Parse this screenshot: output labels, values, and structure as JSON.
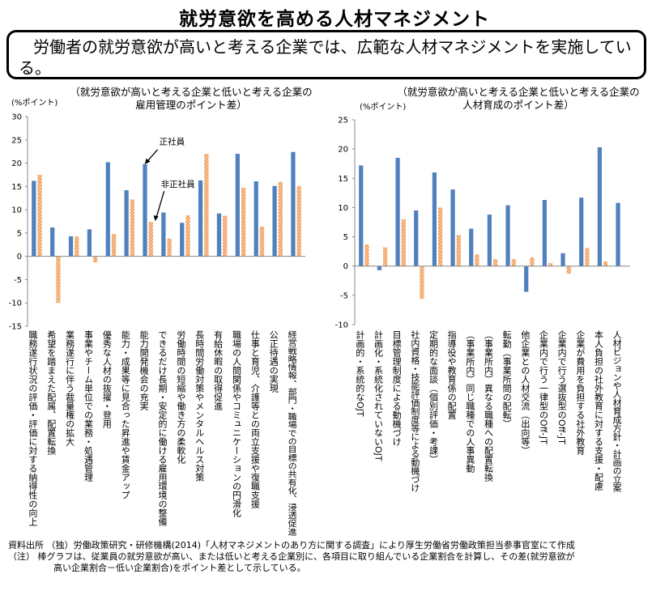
{
  "title": "就労意欲を高める人材マネジメント",
  "summary": "労働者の就労意欲が高いと考える企業では、広範な人材マネジメントを実施している。",
  "colors": {
    "regular": "#4f81bd",
    "nonregular": "#f79646"
  },
  "annotations": {
    "regular": "正社員",
    "nonregular": "非正社員"
  },
  "chart_data": [
    {
      "type": "bar",
      "title_lines": [
        "（就労意欲が高いと考える企業と低いと考える企業の",
        "雇用管理のポイント差）"
      ],
      "ylabel": "(%ポイント)",
      "ylim": [
        -15,
        30
      ],
      "yticks": [
        -15,
        -10,
        -5,
        0,
        5,
        10,
        15,
        20,
        25,
        30
      ],
      "categories": [
        "職務遂行状況の評価・評価に対する納得性の向上",
        "希望を踏まえた配属、配置転換",
        "業務遂行に伴う裁量権の拡大",
        "事業やチーム単位での業務・処遇管理",
        "優秀な人材の抜擢・登用",
        "能力・成果等に見合った昇進や賃金アップ",
        "能力開発機会の充実",
        "できるだけ長期・安定的に働ける雇用環境の整備",
        "労働時間の短縮や働き方の柔軟化",
        "長時間労働対策やメンタルヘルス対策",
        "有給休暇の取得促進",
        "職場の人間関係やコミュニケーションの円滑化",
        "仕事と育児、介護等との両立支援や復職支援",
        "公正待遇の実現",
        "経営戦略情報、部門・職場での目標の共有化、浸透促進"
      ],
      "series": [
        {
          "name": "正社員",
          "values": [
            16.2,
            6.2,
            4.3,
            5.8,
            20.2,
            14.2,
            19.8,
            9.4,
            7.2,
            16.3,
            9.2,
            22.0,
            16.1,
            15.1,
            22.4
          ]
        },
        {
          "name": "非正社員",
          "values": [
            17.5,
            -10.0,
            4.3,
            -1.3,
            4.8,
            12.2,
            7.4,
            3.8,
            8.8,
            22.0,
            8.7,
            14.7,
            6.4,
            16.0,
            15.1
          ]
        }
      ]
    },
    {
      "type": "bar",
      "title_lines": [
        "（就労意欲が高いと考える企業と低いと考える企業の",
        "人材育成のポイント差）"
      ],
      "ylabel": "(%ポイント)",
      "ylim": [
        -10,
        25
      ],
      "yticks": [
        -10,
        -5,
        0,
        5,
        10,
        15,
        20,
        25
      ],
      "categories": [
        "計画的・系統的なOJT",
        "計画化・系統化されていないOJT",
        "目標管理制度による動機づけ",
        "社内資格・技能評価制度等による動機づけ",
        "定期的な面談（個別評価・考課）",
        "指導役や教育係の配置",
        "（事業所内）同じ職種での人事異動",
        "（事業所内）異なる職種への配置転換",
        "転勤（事業所間の配転）",
        "他企業との人材交流（出向等）",
        "企業内で行う一律型のOff-JT",
        "企業内で行う選抜型のOff-JT",
        "企業が費用を負担する社外教育",
        "本人負担の社外教育に対する支援・配慮",
        "人材ビジョンや人材育成方針・計画の立案"
      ],
      "series": [
        {
          "name": "正社員",
          "values": [
            17.2,
            -0.7,
            18.5,
            9.5,
            16.0,
            13.1,
            6.4,
            8.8,
            10.4,
            -4.4,
            11.3,
            2.2,
            11.7,
            20.3,
            10.8
          ]
        },
        {
          "name": "非正社員",
          "values": [
            3.7,
            3.2,
            8.0,
            -5.6,
            10.0,
            5.3,
            2.0,
            1.2,
            1.2,
            1.5,
            0.5,
            -1.3,
            3.1,
            0.8,
            0.0
          ]
        }
      ]
    }
  ],
  "footer": {
    "source": "資料出所 （独）労働政策研究・研修機構(2014)「人材マネジメントのあり方に関する調査」により厚生労働省労働政策担当参事官室にて作成",
    "note1": "（注） 棒グラフは、従業員の就労意欲が高い、または低いと考える企業別に、各項目に取り組んでいる企業割合を計算し、その差(就労意欲が",
    "note2": "高い企業割合－低い企業割合)をポイント差として示している。"
  }
}
